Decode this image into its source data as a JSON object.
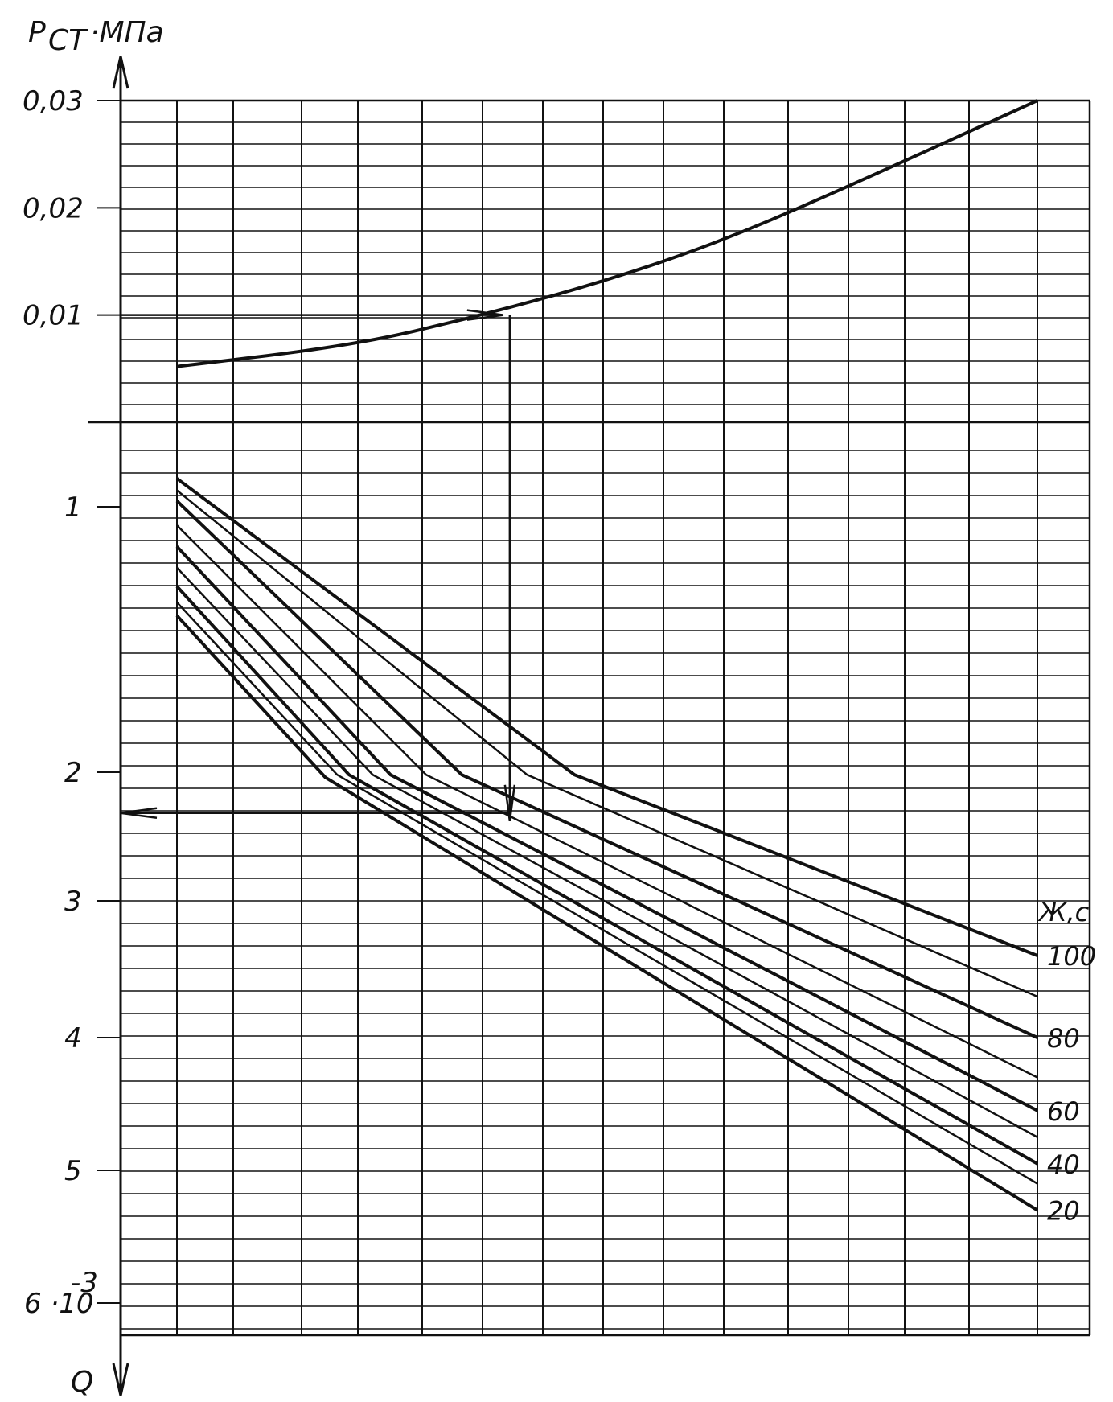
{
  "chart_data": {
    "type": "line",
    "axes": {
      "top_ylabel": "P",
      "top_ylabel_sub": "СТ",
      "top_ylabel_unit": "·МПа",
      "bottom_ylabel": "Q"
    },
    "top_panel": {
      "ytick_labels": [
        "0,03",
        "0,02",
        "0,01"
      ],
      "ylim": [
        0,
        0.03
      ],
      "series": [
        {
          "name": "",
          "points": [
            [
              0,
              0.0052
            ],
            [
              3,
              0.0072
            ],
            [
              5,
              0.0098
            ],
            [
              7,
              0.0128
            ],
            [
              9,
              0.0165
            ],
            [
              11,
              0.0212
            ],
            [
              14.5,
              0.03
            ]
          ]
        }
      ]
    },
    "bottom_panel": {
      "ytick_labels": [
        "1",
        "2",
        "3",
        "4",
        "5",
        "6 ·10"
      ],
      "ytick_values": [
        1,
        2,
        3,
        4,
        5,
        6
      ],
      "ytick_exponent": "-3",
      "ylim": [
        0.35,
        6.5
      ],
      "series_legend_title": "Ж,с",
      "series": [
        {
          "name": "100",
          "points": [
            [
              0,
              0.76
            ],
            [
              6.7,
              2.02
            ],
            [
              14.5,
              3.4
            ]
          ]
        },
        {
          "name": "",
          "points": [
            [
              0,
              0.86
            ],
            [
              5.9,
              2.02
            ],
            [
              14.5,
              3.7
            ]
          ]
        },
        {
          "name": "80",
          "points": [
            [
              0,
              0.95
            ],
            [
              4.8,
              2.02
            ],
            [
              14.5,
              4.0
            ]
          ]
        },
        {
          "name": "",
          "points": [
            [
              0,
              1.07
            ],
            [
              4.2,
              2.02
            ],
            [
              14.5,
              4.3
            ]
          ]
        },
        {
          "name": "60",
          "points": [
            [
              0,
              1.15
            ],
            [
              3.6,
              2.02
            ],
            [
              14.5,
              4.55
            ]
          ]
        },
        {
          "name": "",
          "points": [
            [
              0,
              1.23
            ],
            [
              3.3,
              2.02
            ],
            [
              14.5,
              4.75
            ]
          ]
        },
        {
          "name": "40",
          "points": [
            [
              0,
              1.3
            ],
            [
              2.9,
              2.02
            ],
            [
              14.5,
              4.95
            ]
          ]
        },
        {
          "name": "",
          "points": [
            [
              0,
              1.36
            ],
            [
              2.7,
              2.02
            ],
            [
              14.5,
              5.1
            ]
          ]
        },
        {
          "name": "20",
          "points": [
            [
              0,
              1.41
            ],
            [
              2.5,
              2.04
            ],
            [
              14.5,
              5.3
            ]
          ]
        }
      ]
    },
    "example_path": {
      "start_top": 0.01,
      "x": 5.5,
      "end_bottom": 2.38
    }
  }
}
